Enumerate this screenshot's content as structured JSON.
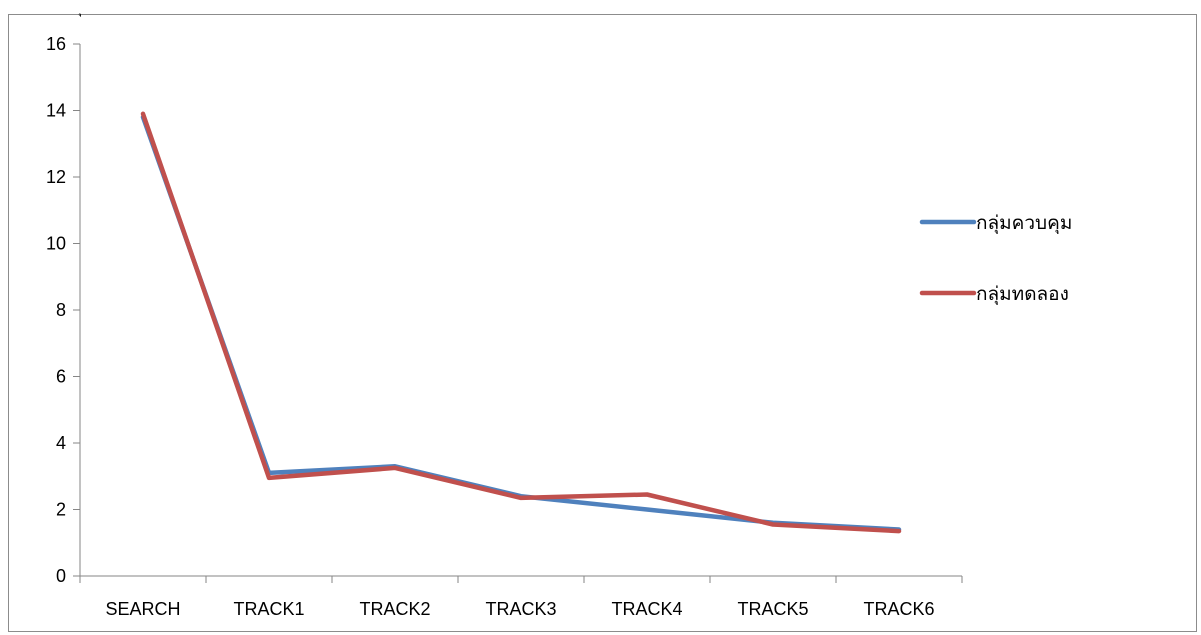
{
  "chart_data": {
    "type": "line",
    "title": "",
    "xlabel": "",
    "ylabel": "",
    "categories": [
      "SEARCH",
      "TRACK1",
      "TRACK2",
      "TRACK3",
      "TRACK4",
      "TRACK5",
      "TRACK6"
    ],
    "ylim": [
      0,
      16
    ],
    "yticks": [
      "0",
      "2",
      "4",
      "6",
      "8",
      "10",
      "12",
      "14",
      "16"
    ],
    "grid": false,
    "legend_position": "right",
    "series": [
      {
        "name": "กลุ่มควบคุม",
        "color": "#4f81bd",
        "values": [
          13.8,
          3.1,
          3.3,
          2.4,
          2.0,
          1.6,
          1.4
        ]
      },
      {
        "name": "กลุ่มทดลอง",
        "color": "#c0504d",
        "values": [
          13.9,
          2.95,
          3.25,
          2.35,
          2.45,
          1.55,
          1.35
        ]
      }
    ]
  }
}
